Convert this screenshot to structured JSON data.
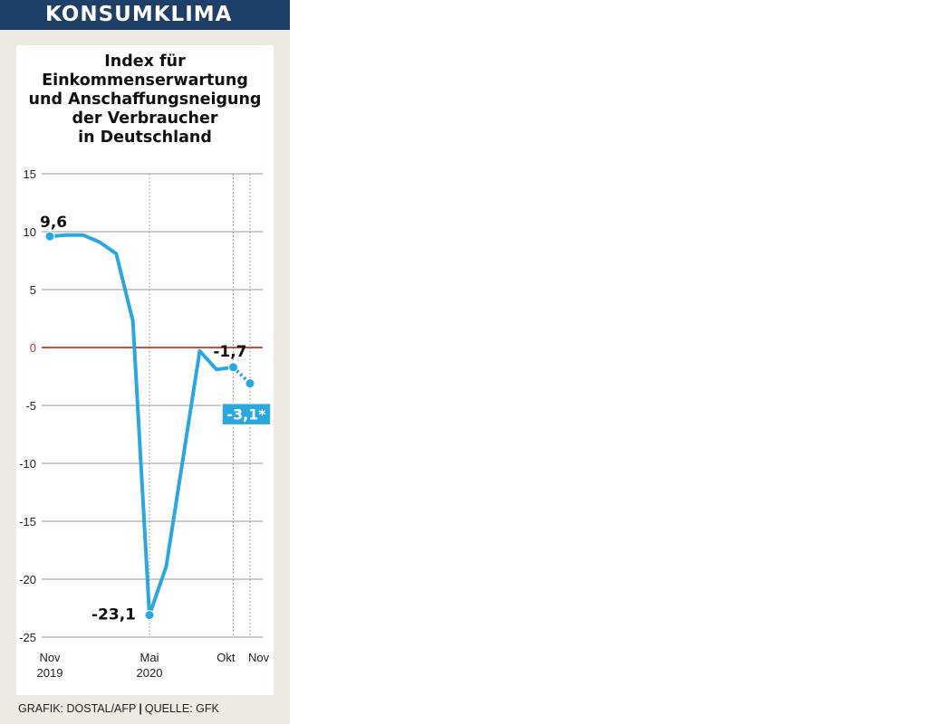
{
  "header": {
    "title": "KONSUMKLIMA"
  },
  "colors": {
    "header_bg": "#1e3f66",
    "line": "#2aa7dc",
    "zero_line": "#c0392b",
    "panel_bg": "#efeae1"
  },
  "footer": {
    "grafik": "GRAFIK: DOSTAL/AFP",
    "quelle": "QUELLE: GFK"
  },
  "chart_data": {
    "type": "line",
    "title": "Index für\nEinkommenserwartung\nund Anschaffungsneigung\nder Verbraucher\nin Deutschland",
    "ylim": [
      -25,
      15
    ],
    "yticks": [
      "15",
      "10",
      "5",
      "0",
      "-5",
      "-10",
      "-15",
      "-20",
      "-25"
    ],
    "ytick_values": [
      15,
      10,
      5,
      0,
      -5,
      -10,
      -15,
      -20,
      -25
    ],
    "x_axis_labels": [
      {
        "month": "Nov",
        "year": "2019",
        "index": 0
      },
      {
        "month": "Mai",
        "year": "2020",
        "index": 6
      },
      {
        "month": "Okt",
        "year": "",
        "index": 11
      },
      {
        "month": "Nov",
        "year": "",
        "index": 12
      }
    ],
    "zero_line": true,
    "series": [
      {
        "x": [
          "Nov 2019",
          "Dez 2019",
          "Jan 2020",
          "Feb 2020",
          "Mär 2020",
          "Apr 2020",
          "Mai 2020",
          "Jun 2020",
          "Jul 2020",
          "Aug 2020",
          "Sep 2020",
          "Okt 2020"
        ],
        "values": [
          9.6,
          9.7,
          9.7,
          9.1,
          8.1,
          2.3,
          -23.1,
          -18.9,
          -9.6,
          -0.3,
          -1.9,
          -1.7
        ],
        "style": "solid"
      },
      {
        "x": [
          "Okt 2020",
          "Nov 2020"
        ],
        "values": [
          -1.7,
          -3.1
        ],
        "style": "dotted"
      }
    ],
    "annotations": [
      {
        "text": "9,6",
        "index": 0,
        "value": 9.6,
        "style": "plain"
      },
      {
        "text": "-23,1",
        "index": 6,
        "value": -23.1,
        "style": "plain"
      },
      {
        "text": "-1,7",
        "index": 11,
        "value": -1.7,
        "style": "plain"
      },
      {
        "text": "-3,1*",
        "index": 12,
        "value": -3.1,
        "style": "box"
      }
    ]
  }
}
